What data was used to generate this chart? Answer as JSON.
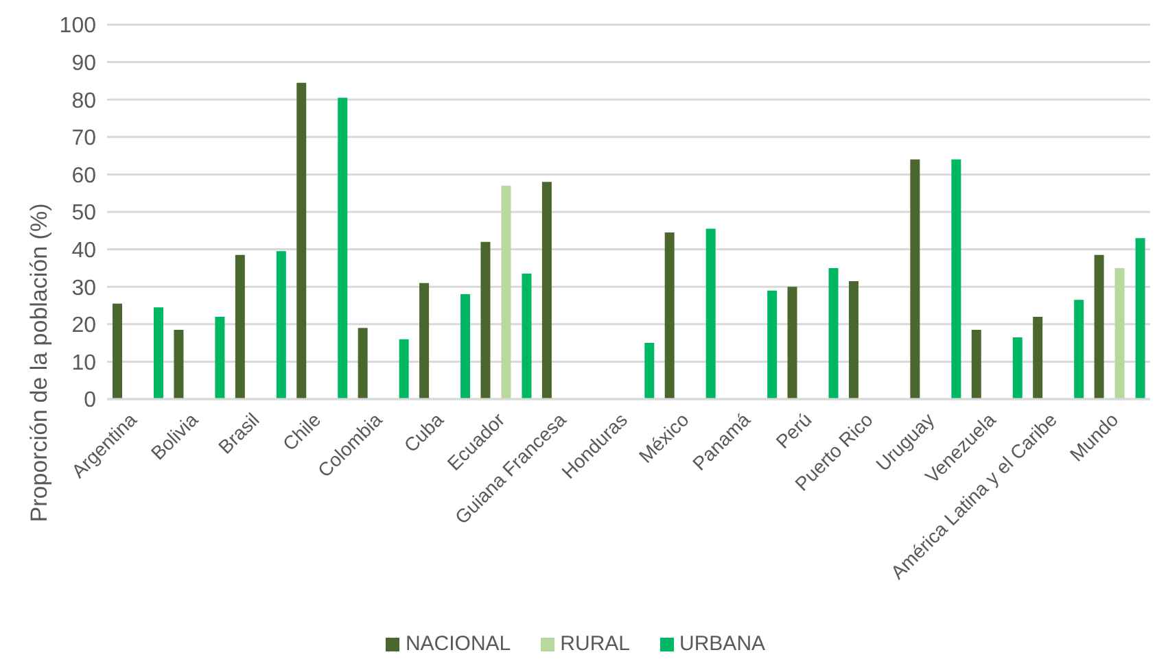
{
  "chart_data": {
    "type": "bar",
    "ylabel": "Proporción de la población (%)",
    "categories": [
      "Argentina",
      "Bolivia",
      "Brasil",
      "Chile",
      "Colombia",
      "Cuba",
      "Ecuador",
      "Guiana Francesa",
      "Honduras",
      "México",
      "Panamá",
      "Perú",
      "Puerto Rico",
      "Uruguay",
      "Venezuela",
      "América Latina y el Caribe",
      "Mundo"
    ],
    "series": [
      {
        "name": "NACIONAL",
        "color": "#4a682d",
        "values": [
          25.5,
          18.5,
          38.5,
          84.5,
          19,
          31,
          42,
          58,
          null,
          44.5,
          null,
          30,
          31.5,
          64,
          18.5,
          22,
          38.5
        ]
      },
      {
        "name": "RURAL",
        "color": "#b8d89e",
        "values": [
          null,
          null,
          null,
          null,
          null,
          null,
          57,
          null,
          null,
          null,
          null,
          null,
          null,
          null,
          null,
          null,
          35
        ]
      },
      {
        "name": "URBANA",
        "color": "#00b863",
        "values": [
          24.5,
          22,
          39.5,
          80.5,
          16,
          28,
          33.5,
          null,
          15,
          45.5,
          29,
          35,
          null,
          64,
          16.5,
          26.5,
          43
        ]
      }
    ],
    "ylim": [
      0,
      100
    ],
    "yticks": [
      0,
      10,
      20,
      30,
      40,
      50,
      60,
      70,
      80,
      90,
      100
    ],
    "grid": "y",
    "legend": "bottom"
  }
}
